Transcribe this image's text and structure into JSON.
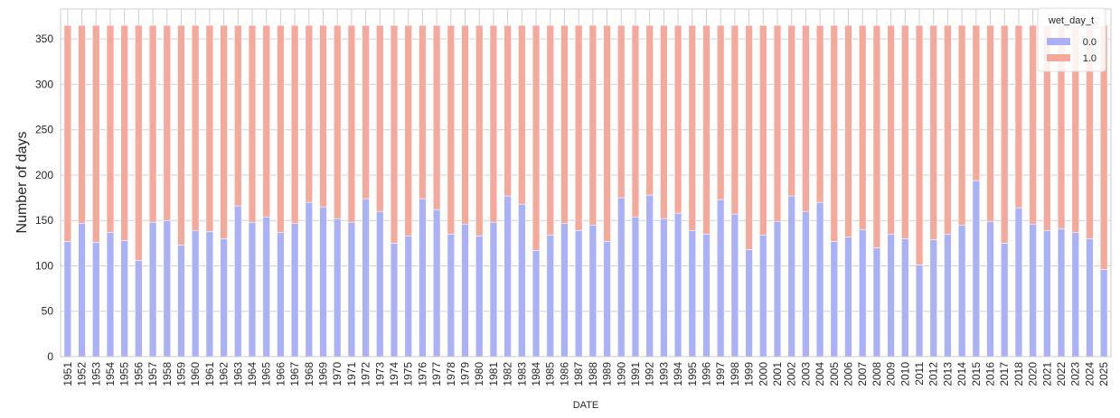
{
  "chart_data": {
    "type": "bar",
    "stacked": true,
    "title": "",
    "xlabel": "DATE",
    "ylabel": "Number of days",
    "ylim": [
      0,
      383
    ],
    "yticks": [
      0,
      50,
      100,
      150,
      200,
      250,
      300,
      350
    ],
    "grid": true,
    "legend_position": "upper right",
    "legend_title": "wet_day_t",
    "categories": [
      "1951",
      "1952",
      "1953",
      "1954",
      "1955",
      "1956",
      "1957",
      "1958",
      "1959",
      "1960",
      "1961",
      "1962",
      "1963",
      "1964",
      "1965",
      "1966",
      "1967",
      "1968",
      "1969",
      "1970",
      "1971",
      "1972",
      "1973",
      "1974",
      "1975",
      "1976",
      "1977",
      "1978",
      "1979",
      "1980",
      "1981",
      "1982",
      "1983",
      "1984",
      "1985",
      "1986",
      "1987",
      "1988",
      "1989",
      "1990",
      "1991",
      "1992",
      "1993",
      "1994",
      "1995",
      "1996",
      "1997",
      "1998",
      "1999",
      "2000",
      "2001",
      "2002",
      "2003",
      "2004",
      "2005",
      "2006",
      "2007",
      "2008",
      "2009",
      "2010",
      "2011",
      "2012",
      "2013",
      "2014",
      "2015",
      "2016",
      "2017",
      "2018",
      "2020",
      "2021",
      "2022",
      "2023",
      "2024",
      "2025"
    ],
    "series": [
      {
        "name": "0.0",
        "color": "#aab1f6",
        "values": [
          127,
          147,
          126,
          137,
          128,
          106,
          148,
          150,
          123,
          139,
          138,
          130,
          166,
          148,
          154,
          137,
          147,
          170,
          165,
          152,
          148,
          174,
          160,
          125,
          133,
          174,
          162,
          135,
          146,
          133,
          148,
          177,
          168,
          117,
          134,
          147,
          139,
          145,
          127,
          175,
          154,
          178,
          152,
          158,
          139,
          135,
          173,
          157,
          118,
          134,
          149,
          177,
          160,
          170,
          127,
          132,
          140,
          120,
          135,
          130,
          101,
          129,
          135,
          145,
          194,
          149,
          125,
          164,
          146,
          139,
          141,
          137,
          130,
          96
        ]
      },
      {
        "name": "1.0",
        "color": "#f5a99b",
        "values": [
          238,
          218,
          239,
          228,
          237,
          259,
          217,
          215,
          242,
          226,
          227,
          235,
          199,
          217,
          211,
          228,
          218,
          195,
          200,
          213,
          217,
          191,
          205,
          240,
          232,
          191,
          203,
          230,
          219,
          232,
          217,
          188,
          197,
          248,
          231,
          218,
          226,
          220,
          238,
          190,
          211,
          187,
          213,
          207,
          226,
          230,
          192,
          208,
          247,
          231,
          216,
          188,
          205,
          195,
          238,
          233,
          225,
          245,
          230,
          235,
          264,
          236,
          230,
          220,
          171,
          216,
          240,
          201,
          219,
          226,
          224,
          228,
          235,
          269
        ]
      }
    ]
  }
}
